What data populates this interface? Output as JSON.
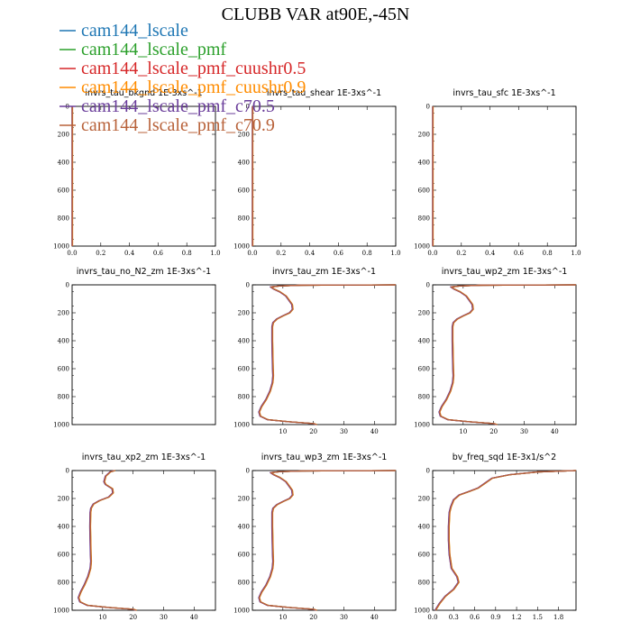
{
  "chart_data": {
    "type": "line",
    "title": "CLUBB VAR at90E,-45N",
    "legend": {
      "placement": "top-left",
      "entries": [
        {
          "name": "cam144_lscale",
          "color": "#1f77b4"
        },
        {
          "name": "cam144_lscale_pmf",
          "color": "#2ca02c"
        },
        {
          "name": "cam144_lscale_pmf_cuushr0.5",
          "color": "#d62728"
        },
        {
          "name": "cam144_lscale_pmf_cuushr0.9",
          "color": "#ff8c00"
        },
        {
          "name": "cam144_lscale_pmf_c70.5",
          "color": "#6a3d9a"
        },
        {
          "name": "cam144_lscale_pmf_c70.9",
          "color": "#b8623a"
        }
      ]
    },
    "panels": [
      {
        "title": "invrs_tau_bkgnd   1E-3xs^-1",
        "xlim": [
          0,
          1
        ],
        "ylim": [
          0,
          1000
        ],
        "xticks": [
          "0.0",
          "0.2",
          "0.4",
          "0.6",
          "0.8",
          "1.0"
        ],
        "yticks": [
          "0",
          "200",
          "400",
          "600",
          "800",
          "1000"
        ],
        "profile": [
          [
            0,
            1000
          ],
          [
            0,
            0
          ]
        ]
      },
      {
        "title": "invrs_tau_shear   1E-3xs^-1",
        "xlim": [
          0,
          1
        ],
        "ylim": [
          0,
          1000
        ],
        "xticks": [
          "0.0",
          "0.2",
          "0.4",
          "0.6",
          "0.8",
          "1.0"
        ],
        "yticks": [
          "0",
          "200",
          "400",
          "600",
          "800",
          "1000"
        ],
        "profile": [
          [
            0,
            1000
          ],
          [
            0,
            0
          ]
        ]
      },
      {
        "title": "invrs_tau_sfc   1E-3xs^-1",
        "xlim": [
          0,
          1
        ],
        "ylim": [
          0,
          1000
        ],
        "xticks": [
          "0.0",
          "0.2",
          "0.4",
          "0.6",
          "0.8",
          "1.0"
        ],
        "yticks": [
          "0",
          "200",
          "400",
          "600",
          "800",
          "1000"
        ],
        "profile": [
          [
            0,
            1000
          ],
          [
            0,
            0
          ]
        ]
      },
      {
        "title": "invrs_tau_no_N2_zm   1E-3xs^-1",
        "xlim": [
          0,
          1
        ],
        "ylim": [
          0,
          1000
        ],
        "xticks": [],
        "yticks": [
          "0",
          "200",
          "400",
          "600",
          "800",
          "1000"
        ],
        "profile": []
      },
      {
        "title": "invrs_tau_zm   1E-3xs^-1",
        "xlim": [
          0,
          47
        ],
        "ylim": [
          0,
          1000
        ],
        "xticks": [
          "10",
          "20",
          "30",
          "40"
        ],
        "yticks": [
          "0",
          "200",
          "400",
          "600",
          "800",
          "1000"
        ],
        "profile": [
          [
            47,
            0
          ],
          [
            16,
            3
          ],
          [
            9,
            8
          ],
          [
            6,
            15
          ],
          [
            7,
            30
          ],
          [
            9,
            50
          ],
          [
            11,
            80
          ],
          [
            12,
            110
          ],
          [
            13,
            140
          ],
          [
            13.2,
            175
          ],
          [
            12.2,
            200
          ],
          [
            10,
            222
          ],
          [
            8,
            245
          ],
          [
            6.8,
            270
          ],
          [
            6.5,
            300
          ],
          [
            6.5,
            400
          ],
          [
            6.6,
            500
          ],
          [
            6.7,
            600
          ],
          [
            6.8,
            650
          ],
          [
            6.6,
            700
          ],
          [
            5.8,
            760
          ],
          [
            4.5,
            820
          ],
          [
            3,
            870
          ],
          [
            2.2,
            910
          ],
          [
            2.6,
            940
          ],
          [
            5,
            965
          ],
          [
            12,
            980
          ],
          [
            20,
            993
          ],
          [
            21,
            1000
          ]
        ]
      },
      {
        "title": "invrs_tau_wp2_zm   1E-3xs^-1",
        "xlim": [
          0,
          47
        ],
        "ylim": [
          0,
          1000
        ],
        "xticks": [
          "10",
          "20",
          "30",
          "40"
        ],
        "yticks": [
          "0",
          "200",
          "400",
          "600",
          "800",
          "1000"
        ],
        "profile": [
          [
            47,
            0
          ],
          [
            16,
            3
          ],
          [
            9,
            8
          ],
          [
            6,
            15
          ],
          [
            7,
            30
          ],
          [
            9,
            50
          ],
          [
            11,
            80
          ],
          [
            12,
            110
          ],
          [
            13,
            140
          ],
          [
            13.2,
            175
          ],
          [
            12.2,
            200
          ],
          [
            10,
            222
          ],
          [
            8,
            245
          ],
          [
            6.8,
            270
          ],
          [
            6.5,
            300
          ],
          [
            6.5,
            400
          ],
          [
            6.6,
            500
          ],
          [
            6.7,
            600
          ],
          [
            6.8,
            650
          ],
          [
            6.6,
            700
          ],
          [
            5.8,
            760
          ],
          [
            4.5,
            820
          ],
          [
            3,
            870
          ],
          [
            2.2,
            910
          ],
          [
            2.6,
            940
          ],
          [
            5,
            965
          ],
          [
            12,
            980
          ],
          [
            20,
            993
          ],
          [
            21,
            1000
          ]
        ]
      },
      {
        "title": "invrs_tau_xp2_zm   1E-3xs^-1",
        "xlim": [
          0,
          47
        ],
        "ylim": [
          0,
          1000
        ],
        "xticks": [
          "10",
          "20",
          "30",
          "40"
        ],
        "yticks": [
          "0",
          "200",
          "400",
          "600",
          "800",
          "1000"
        ],
        "profile": [
          [
            14,
            0
          ],
          [
            12.5,
            10
          ],
          [
            11,
            40
          ],
          [
            10.5,
            80
          ],
          [
            11,
            100
          ],
          [
            13.2,
            130
          ],
          [
            13.4,
            160
          ],
          [
            12,
            190
          ],
          [
            9,
            215
          ],
          [
            7,
            240
          ],
          [
            6.2,
            270
          ],
          [
            6,
            300
          ],
          [
            5.9,
            400
          ],
          [
            6,
            500
          ],
          [
            6.1,
            600
          ],
          [
            6.2,
            650
          ],
          [
            6,
            700
          ],
          [
            5.2,
            760
          ],
          [
            4,
            820
          ],
          [
            2.8,
            870
          ],
          [
            2.1,
            910
          ],
          [
            2.6,
            940
          ],
          [
            5,
            965
          ],
          [
            12,
            980
          ],
          [
            20,
            993
          ],
          [
            21,
            1000
          ]
        ]
      },
      {
        "title": "invrs_tau_wp3_zm   1E-3xs^-1",
        "xlim": [
          0,
          47
        ],
        "ylim": [
          0,
          1000
        ],
        "xticks": [
          "10",
          "20",
          "30",
          "40"
        ],
        "yticks": [
          "0",
          "200",
          "400",
          "600",
          "800",
          "1000"
        ],
        "profile": [
          [
            47,
            0
          ],
          [
            16,
            3
          ],
          [
            9,
            8
          ],
          [
            6,
            15
          ],
          [
            7,
            30
          ],
          [
            9,
            50
          ],
          [
            11,
            80
          ],
          [
            12,
            110
          ],
          [
            13,
            140
          ],
          [
            13.2,
            175
          ],
          [
            12.2,
            200
          ],
          [
            10,
            222
          ],
          [
            8,
            245
          ],
          [
            6.8,
            270
          ],
          [
            6.5,
            300
          ],
          [
            6.5,
            400
          ],
          [
            6.6,
            500
          ],
          [
            6.7,
            600
          ],
          [
            6.8,
            650
          ],
          [
            6.6,
            700
          ],
          [
            5.8,
            760
          ],
          [
            4.5,
            820
          ],
          [
            3,
            870
          ],
          [
            2.2,
            910
          ],
          [
            2.6,
            940
          ],
          [
            5,
            965
          ],
          [
            12,
            980
          ],
          [
            20,
            993
          ],
          [
            21,
            1000
          ]
        ]
      },
      {
        "title": "bv_freq_sqd   1E-3x1/s^2",
        "xlim": [
          0,
          2.05
        ],
        "ylim": [
          0,
          1000
        ],
        "xticks": [
          "0.0",
          "0.3",
          "0.6",
          "0.9",
          "1.2",
          "1.5",
          "1.8"
        ],
        "yticks": [
          "0",
          "200",
          "400",
          "600",
          "800",
          "1000"
        ],
        "profile": [
          [
            2.05,
            0
          ],
          [
            1.5,
            10
          ],
          [
            1.1,
            30
          ],
          [
            0.85,
            55
          ],
          [
            0.75,
            90
          ],
          [
            0.65,
            125
          ],
          [
            0.52,
            150
          ],
          [
            0.38,
            175
          ],
          [
            0.3,
            210
          ],
          [
            0.26,
            260
          ],
          [
            0.24,
            300
          ],
          [
            0.23,
            400
          ],
          [
            0.23,
            500
          ],
          [
            0.24,
            600
          ],
          [
            0.27,
            700
          ],
          [
            0.35,
            760
          ],
          [
            0.37,
            800
          ],
          [
            0.3,
            850
          ],
          [
            0.18,
            900
          ],
          [
            0.1,
            950
          ],
          [
            0.05,
            990
          ],
          [
            0.04,
            1000
          ]
        ]
      }
    ]
  }
}
